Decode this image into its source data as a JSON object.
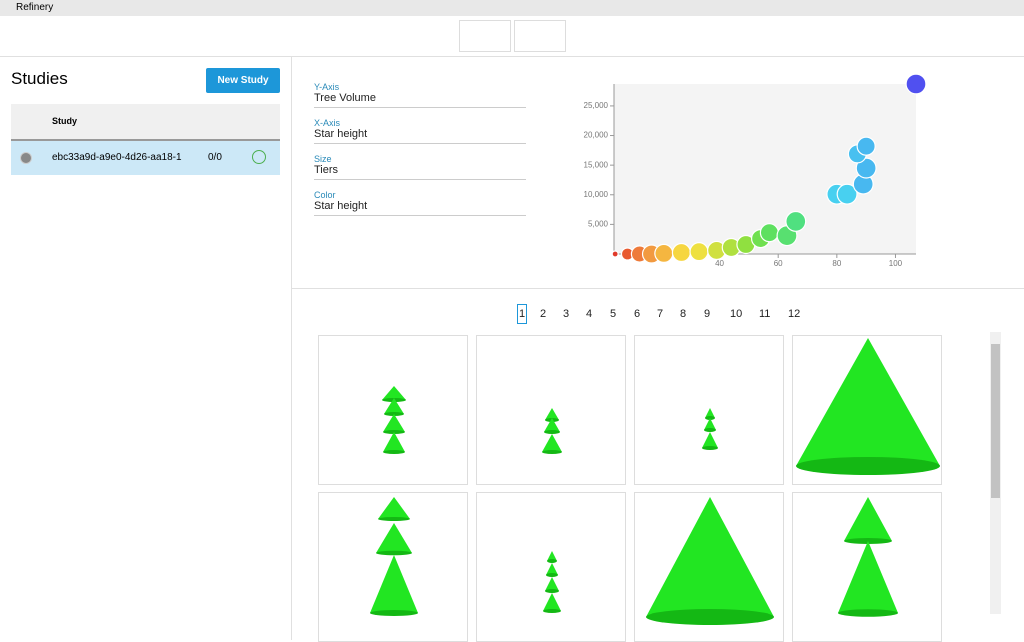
{
  "window": {
    "title": "Refinery"
  },
  "sidebar": {
    "title": "Studies",
    "new_button": "New Study",
    "table": {
      "header": "Study",
      "rows": [
        {
          "name": "ebc33a9d-a9e0-4d26-aa18-1",
          "progress": "0/0"
        }
      ]
    }
  },
  "fields": [
    {
      "label": "Y-Axis",
      "value": "Tree Volume"
    },
    {
      "label": "X-Axis",
      "value": "Star height"
    },
    {
      "label": "Size",
      "value": "Tiers"
    },
    {
      "label": "Color",
      "value": "Star height"
    }
  ],
  "chart": {
    "type": "scatter",
    "xlim": [
      4,
      107
    ],
    "ylim": [
      0,
      28700
    ],
    "xticks": [
      40,
      60,
      80,
      100
    ],
    "yticks": [
      {
        "value": 5000,
        "label": "5,000"
      },
      {
        "value": 10000,
        "label": "10,000"
      },
      {
        "value": 15000,
        "label": "15,000"
      },
      {
        "value": 20000,
        "label": "20,000"
      },
      {
        "value": 25000,
        "label": "25,000"
      }
    ],
    "x": [
      4.4,
      8.6,
      12.7,
      16.8,
      21,
      27,
      33,
      39,
      44,
      49,
      54,
      57,
      63,
      66,
      80,
      83.5,
      89,
      90,
      87,
      90,
      107
    ],
    "y": [
      0,
      0,
      0,
      0,
      100,
      250,
      400,
      600,
      1100,
      1600,
      2600,
      3600,
      3100,
      5500,
      10100,
      10100,
      11800,
      14500,
      16900,
      18200,
      28700
    ],
    "size": [
      1,
      2,
      2.7,
      3,
      3,
      3,
      3,
      3,
      3,
      3,
      3,
      3,
      3.3,
      3.3,
      3.3,
      3.3,
      3.3,
      3.3,
      3,
      3,
      3.3
    ],
    "colors": [
      "#e03a2a",
      "#e85a30",
      "#ee7a3a",
      "#f29a40",
      "#f5b640",
      "#f6d640",
      "#eee040",
      "#d0e040",
      "#b0e040",
      "#90e040",
      "#70e050",
      "#5ee060",
      "#58e070",
      "#50e080",
      "#48d0f0",
      "#48d0f0",
      "#48b8f0",
      "#48b8f0",
      "#48c0f0",
      "#48b8f0",
      "#5050f0"
    ]
  },
  "pages": [
    "1",
    "2",
    "3",
    "4",
    "5",
    "6",
    "7",
    "8",
    "9",
    "10",
    "11",
    "12"
  ]
}
